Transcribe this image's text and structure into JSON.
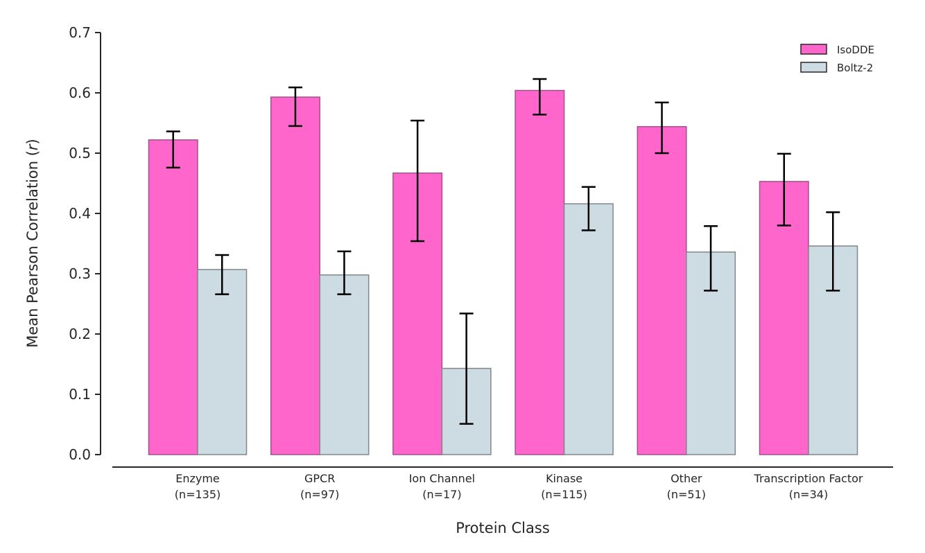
{
  "chart_data": {
    "type": "bar",
    "title": "",
    "xlabel": "Protein Class",
    "ylabel": "Mean Pearson Correlation (r)",
    "ylabel_parts": {
      "prefix": "Mean Pearson Correlation (",
      "italic": "r",
      "suffix": ")"
    },
    "ylim": [
      0.0,
      0.7
    ],
    "yticks": [
      "0.0",
      "0.1",
      "0.2",
      "0.3",
      "0.4",
      "0.5",
      "0.6",
      "0.7"
    ],
    "ytick_values": [
      0.0,
      0.1,
      0.2,
      0.3,
      0.4,
      0.5,
      0.6,
      0.7
    ],
    "categories": [
      "Enzyme",
      "GPCR",
      "Ion Channel",
      "Kinase",
      "Other",
      "Transcription Factor"
    ],
    "category_counts": [
      "(n=135)",
      "(n=97)",
      "(n=17)",
      "(n=115)",
      "(n=51)",
      "(n=34)"
    ],
    "grid": false,
    "legend": {
      "position": "top-right",
      "entries": [
        "IsoDDE",
        "Boltz-2"
      ]
    },
    "series": [
      {
        "name": "IsoDDE",
        "color": "#FF66CC",
        "edge_color": "#A0508C",
        "values": [
          0.522,
          0.593,
          0.467,
          0.604,
          0.544,
          0.453
        ],
        "err_low": [
          0.476,
          0.545,
          0.354,
          0.564,
          0.5,
          0.38
        ],
        "err_high": [
          0.536,
          0.609,
          0.554,
          0.623,
          0.584,
          0.499
        ]
      },
      {
        "name": "Boltz-2",
        "color": "#CDDBE2",
        "edge_color": "#80868A",
        "values": [
          0.307,
          0.298,
          0.143,
          0.416,
          0.336,
          0.346
        ],
        "err_low": [
          0.266,
          0.266,
          0.051,
          0.372,
          0.272,
          0.272
        ],
        "err_high": [
          0.331,
          0.337,
          0.234,
          0.444,
          0.379,
          0.402
        ]
      }
    ]
  }
}
